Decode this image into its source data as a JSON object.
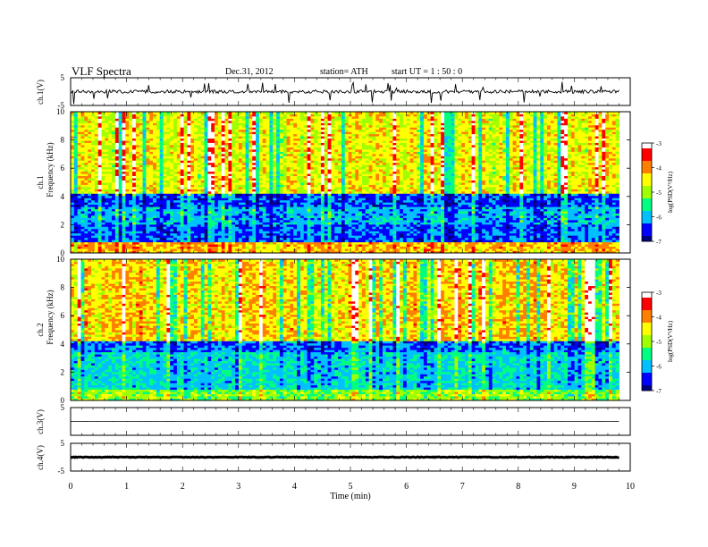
{
  "header": {
    "title": "VLF  Spectra",
    "date": "Dec.31, 2012",
    "station": "station= ATH",
    "start": "start  UT  =   1  : 50 : 0"
  },
  "chart_data": [
    {
      "type": "line",
      "name": "ch.1 waveform",
      "ylabel": "ch.1(V)",
      "ylim": [
        -5,
        5
      ],
      "ytick_labels": [
        "5",
        "-5"
      ],
      "baseline": 0,
      "amplitude": 1.2,
      "style": "noisy waveform with frequent spikes"
    },
    {
      "type": "heatmap",
      "name": "ch.1 spectrogram",
      "ylabel": "ch.1\nFrequency  (kHz)",
      "ylabel_line1": "ch.1",
      "ylabel_line2": "Frequency  (kHz)",
      "ylim": [
        0,
        10
      ],
      "yticks": [
        0,
        2,
        4,
        6,
        8,
        10
      ],
      "ytick_labels": [
        "0",
        "2",
        "4",
        "6",
        "8",
        "10"
      ],
      "x_extent_min": [
        0,
        9.8
      ],
      "colorbar": {
        "label": "log(PSD(V²/Hz)",
        "range": [
          -7,
          -3
        ],
        "ticks": [
          -3,
          -4,
          -5,
          -6,
          -7
        ],
        "tick_labels": [
          "-3",
          "-4",
          "-5",
          "-6",
          "-7"
        ],
        "colors": [
          "#000080",
          "#0000ff",
          "#00c0ff",
          "#00ff80",
          "#a0ff00",
          "#ffff00",
          "#ff8000",
          "#ff0000",
          "#ffffff"
        ]
      },
      "bands": [
        {
          "from_khz": 0.0,
          "to_khz": 0.8,
          "level": -4.2
        },
        {
          "from_khz": 0.8,
          "to_khz": 2.0,
          "level": -6.3
        },
        {
          "from_khz": 2.0,
          "to_khz": 3.3,
          "level": -6.0
        },
        {
          "from_khz": 3.3,
          "to_khz": 4.2,
          "level": -6.4
        },
        {
          "from_khz": 4.2,
          "to_khz": 10.0,
          "level": -4.6
        }
      ]
    },
    {
      "type": "heatmap",
      "name": "ch.2 spectrogram",
      "ylabel": "ch.2\nFrequency  (kHz)",
      "ylabel_line1": "ch.2",
      "ylabel_line2": "Frequency  (kHz)",
      "ylim": [
        0,
        10
      ],
      "yticks": [
        0,
        2,
        4,
        6,
        8,
        10
      ],
      "ytick_labels": [
        "0",
        "2",
        "4",
        "6",
        "8",
        "10"
      ],
      "x_extent_min": [
        0,
        9.8
      ],
      "colorbar": {
        "label": "log(PSD(V²/Hz)",
        "range": [
          -7,
          -3
        ],
        "ticks": [
          -3,
          -4,
          -5,
          -6,
          -7
        ],
        "tick_labels": [
          "-3",
          "-4",
          "-5",
          "-6",
          "-7"
        ],
        "colors": [
          "#000080",
          "#0000ff",
          "#00c0ff",
          "#00ff80",
          "#a0ff00",
          "#ffff00",
          "#ff8000",
          "#ff0000",
          "#ffffff"
        ]
      },
      "bands": [
        {
          "from_khz": 0.0,
          "to_khz": 0.8,
          "level": -5.0
        },
        {
          "from_khz": 0.8,
          "to_khz": 3.5,
          "level": -5.8
        },
        {
          "from_khz": 3.5,
          "to_khz": 4.2,
          "level": -6.2
        },
        {
          "from_khz": 4.2,
          "to_khz": 10.0,
          "level": -4.4
        }
      ]
    },
    {
      "type": "line",
      "name": "ch.3 waveform",
      "ylabel": "ch.3(V)",
      "ylim": [
        -5,
        5
      ],
      "ytick_labels": [
        "5",
        "-5"
      ],
      "baseline": 0,
      "amplitude": 0.05,
      "style": "near-flat line"
    },
    {
      "type": "line",
      "name": "ch.4 waveform",
      "ylabel": "ch.4(V)",
      "ylim": [
        -5,
        5
      ],
      "ytick_labels": [
        "5",
        "-5"
      ],
      "baseline": 0,
      "amplitude": 0.25,
      "style": "thick flat band"
    }
  ],
  "x_axis": {
    "label": "Time  (min)",
    "range": [
      0,
      10
    ],
    "ticks": [
      0,
      1,
      2,
      3,
      4,
      5,
      6,
      7,
      8,
      9,
      10
    ],
    "tick_labels": [
      "0",
      "1",
      "2",
      "3",
      "4",
      "5",
      "6",
      "7",
      "8",
      "9",
      "10"
    ]
  }
}
